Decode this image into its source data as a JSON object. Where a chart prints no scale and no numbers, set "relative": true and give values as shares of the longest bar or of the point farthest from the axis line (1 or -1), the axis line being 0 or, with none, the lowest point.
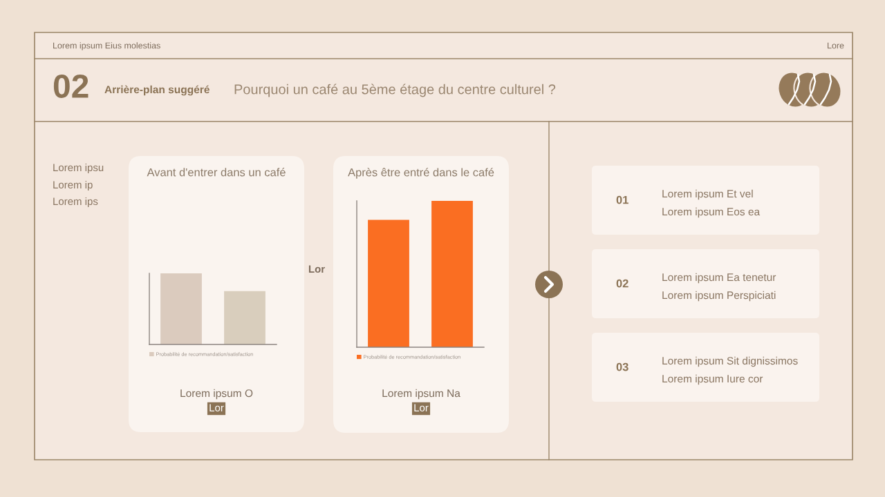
{
  "chart_data": [
    {
      "type": "other",
      "title": "Pourquoi un café au 5ème étage du centre culturel ?",
      "subtitle": "Arrière-plan suggéré",
      "annotations": [
        "Lorem ipsum Eius molestias",
        "Lore",
        "02",
        "Lorem ipsu",
        "Lorem ip",
        "Lorem ips",
        "Lor"
      ]
    },
    {
      "type": "bar",
      "title": "Avant d'entrer dans un café",
      "categories": [
        null,
        null
      ],
      "relative": true,
      "series": [
        {
          "name": "Probabilité de recommandation/satisfaction",
          "color": "#dbcbbe",
          "colors": [
            "#dbcbbe",
            "#d9cebd"
          ],
          "values": [
            1,
            0.75
          ]
        }
      ],
      "legend": "bottom",
      "annotations": [
        "Lorem ipsum O",
        "Lor"
      ]
    },
    {
      "type": "bar",
      "title": "Après être entré dans le café",
      "categories": [
        null,
        null
      ],
      "relative": true,
      "series": [
        {
          "name": "Probabilité de recommandation/satisfaction",
          "color": "#fa6e22",
          "values": [
            0.87,
            1
          ]
        }
      ],
      "legend": "bottom",
      "annotations": [
        "Lorem ipsum Na",
        "Lor"
      ]
    },
    {
      "type": "other",
      "annotations": [
        "01",
        "Lorem ipsum Et vel",
        "Lorem ipsum Eos ea",
        "02",
        "Lorem ipsum Ea tenetur",
        "Lorem ipsum Perspiciati",
        "03",
        "Lorem ipsum Sit dignissimos",
        "Lorem ipsum Iure cor"
      ]
    }
  ]
}
